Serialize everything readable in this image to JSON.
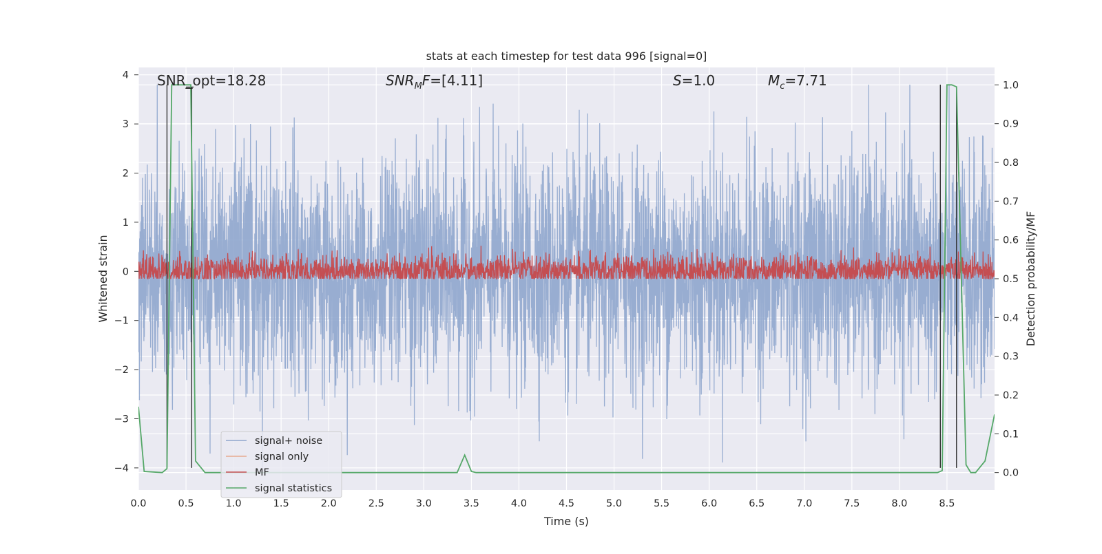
{
  "chart_data": {
    "type": "line",
    "title": "stats at each timestep for test data 996 [signal=0]",
    "xlabel": "Time (s)",
    "ylabel": "Whitened strain",
    "ylabel_right": "Detection probability/MF",
    "xlim": [
      0.0,
      9.0
    ],
    "ylim": [
      -4.45,
      4.15
    ],
    "ylim_right": [
      -0.045,
      1.045
    ],
    "x_ticks": [
      "0.0",
      "0.5",
      "1.0",
      "1.5",
      "2.0",
      "2.5",
      "3.0",
      "3.5",
      "4.0",
      "4.5",
      "5.0",
      "5.5",
      "6.0",
      "6.5",
      "7.0",
      "7.5",
      "8.0",
      "8.5"
    ],
    "y_ticks": [
      "−4",
      "−3",
      "−2",
      "−1",
      "0",
      "1",
      "2",
      "3",
      "4"
    ],
    "y_ticks_right": [
      "0.0",
      "0.1",
      "0.2",
      "0.3",
      "0.4",
      "0.5",
      "0.6",
      "0.7",
      "0.8",
      "0.9",
      "1.0"
    ],
    "grid": true,
    "legend_position": "lower-left",
    "annotations": [
      {
        "text": "SNR_opt=18.28"
      },
      {
        "base": "SNR",
        "sub": "M",
        "tail": "F=[4.11]"
      },
      {
        "base": "S",
        "sub": "",
        "tail": "=1.0"
      },
      {
        "base": "M",
        "sub": "c",
        "tail": "=7.71"
      }
    ],
    "series": [
      {
        "name": "signal+ noise",
        "color": "#8fa6cd",
        "axis": "left",
        "description_values": {
          "mean": 0.0,
          "std": 1.0,
          "min": -4.0,
          "max": 3.8
        }
      },
      {
        "name": "signal only",
        "color": "#e8a98f",
        "axis": "left",
        "x": [],
        "y": []
      },
      {
        "name": "MF",
        "color": "#c44e52",
        "axis": "right",
        "description_values": {
          "baseline": 0.52,
          "min": 0.5,
          "max": 0.63
        }
      },
      {
        "name": "signal statistics",
        "color": "#55a868",
        "axis": "right",
        "x": [
          0.0,
          0.06,
          0.25,
          0.3,
          0.35,
          0.4,
          0.5,
          0.55,
          0.6,
          0.7,
          3.35,
          3.43,
          3.5,
          3.55,
          8.4,
          8.45,
          8.5,
          8.55,
          8.6,
          8.7,
          8.75,
          8.8,
          8.9,
          9.0
        ],
        "y": [
          0.17,
          0.003,
          0.0,
          0.01,
          1.0,
          1.0,
          1.0,
          1.0,
          0.03,
          0.0,
          0.0,
          0.045,
          0.003,
          0.0,
          0.0,
          0.005,
          1.0,
          1.0,
          0.995,
          0.02,
          0.0,
          0.0,
          0.03,
          0.15
        ]
      }
    ],
    "vertical_markers": [
      {
        "x": 0.3,
        "y": [
          -4.0,
          3.8
        ],
        "color": "#333333"
      },
      {
        "x": 0.56,
        "y": [
          -4.0,
          3.75
        ],
        "color": "#333333"
      },
      {
        "x": 8.43,
        "y": [
          -4.0,
          3.8
        ],
        "color": "#333333"
      },
      {
        "x": 8.6,
        "y": [
          -4.0,
          3.75
        ],
        "color": "#333333"
      }
    ],
    "short_marks": [
      {
        "x": [
          0.5,
          0.58
        ],
        "y": 3.75
      }
    ]
  }
}
